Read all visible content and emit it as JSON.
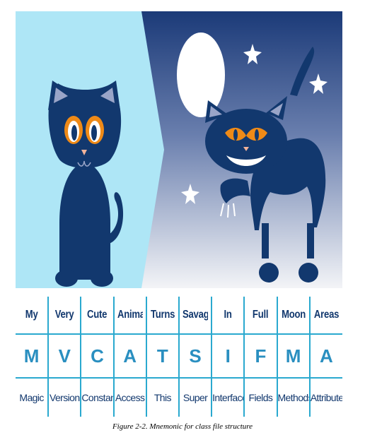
{
  "figure": {
    "caption": "Figure 2-2. Mnemonic for class file structure",
    "illustration": {
      "left_scene": "cute-cat",
      "right_scene": "savage-cat-under-moon",
      "icons": [
        "sitting-cat-icon",
        "arched-cat-icon",
        "moon-icon",
        "star-icon"
      ],
      "colors": {
        "left_bg": "#aee6f6",
        "night_top": "#1b3a78",
        "night_bottom": "#f3f4f7",
        "cat": "#12386e",
        "eye": "#ef8a17",
        "ear_inner": "#9aa5c8",
        "moon": "#ffffff"
      }
    },
    "columns": [
      {
        "word": "My",
        "letter": "M",
        "meaning": "Magic"
      },
      {
        "word": "Very",
        "letter": "V",
        "meaning": "Version"
      },
      {
        "word": "Cute",
        "letter": "C",
        "meaning": "Constant"
      },
      {
        "word": "Animal",
        "letter": "A",
        "meaning": "Access"
      },
      {
        "word": "Turns",
        "letter": "T",
        "meaning": "This"
      },
      {
        "word": "Savage",
        "letter": "S",
        "meaning": "Super"
      },
      {
        "word": "In",
        "letter": "I",
        "meaning": "Interfaces"
      },
      {
        "word": "Full",
        "letter": "F",
        "meaning": "Fields"
      },
      {
        "word": "Moon",
        "letter": "M",
        "meaning": "Methods"
      },
      {
        "word": "Areas",
        "letter": "A",
        "meaning": "Attributes"
      }
    ],
    "table_colors": {
      "word": "#12386e",
      "letter": "#2a8fc0",
      "rule": "#2aa9cf"
    }
  }
}
